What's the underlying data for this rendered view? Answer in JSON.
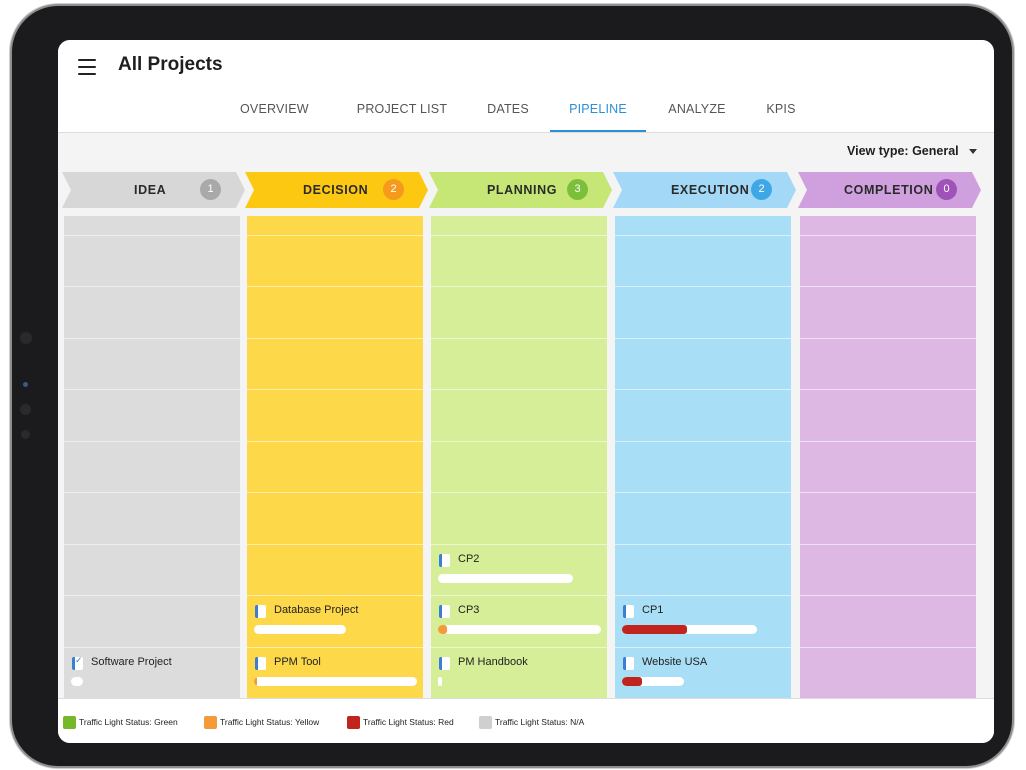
{
  "header": {
    "title": "All Projects",
    "menu_icon": "hamburger-menu-icon"
  },
  "tabs": [
    {
      "label": "OVERVIEW",
      "active": false
    },
    {
      "label": "PROJECT LIST",
      "active": false
    },
    {
      "label": "DATES",
      "active": false
    },
    {
      "label": "PIPELINE",
      "active": true
    },
    {
      "label": "ANALYZE",
      "active": false
    },
    {
      "label": "KPIS",
      "active": false
    }
  ],
  "view_type": {
    "label": "View type: General",
    "icon": "caret-down-icon"
  },
  "stages": [
    {
      "label": "IDEA",
      "count": "1",
      "color": "#d7d7d7",
      "column_color": "#dcdcdc",
      "badge_color": "#a9a9a9"
    },
    {
      "label": "DECISION",
      "count": "2",
      "color": "#fcc812",
      "column_color": "#fdd94a",
      "badge_color": "#f59a1d"
    },
    {
      "label": "PLANNING",
      "count": "3",
      "color": "#c6e775",
      "column_color": "#d6ee97",
      "badge_color": "#7cbf3a"
    },
    {
      "label": "EXECUTION",
      "count": "2",
      "color": "#a3d9f6",
      "column_color": "#a9dff6",
      "badge_color": "#3fa7e6"
    },
    {
      "label": "COMPLETION",
      "count": "0",
      "color": "#cfa0dd",
      "column_color": "#dcb8e3",
      "badge_color": "#9f53b9"
    }
  ],
  "cards": {
    "idea": [
      {
        "name": "Software Project",
        "checked": true,
        "progress": 0.0,
        "status": "na"
      }
    ],
    "decision": [
      {
        "name": "Database Project",
        "checked": false,
        "progress": 0.0,
        "status": "na"
      },
      {
        "name": "PPM Tool",
        "checked": false,
        "progress": 0.01,
        "status": "yellow"
      }
    ],
    "planning": [
      {
        "name": "CP2",
        "checked": false,
        "progress": 0.0,
        "status": "na"
      },
      {
        "name": "CP3",
        "checked": false,
        "progress": 0.07,
        "status": "yellow"
      },
      {
        "name": "PM Handbook",
        "checked": false,
        "progress": 0.0,
        "status": "na"
      }
    ],
    "execution": [
      {
        "name": "CP1",
        "checked": false,
        "progress": 0.48,
        "status": "red"
      },
      {
        "name": "Website USA",
        "checked": false,
        "progress": 0.32,
        "status": "red"
      }
    ],
    "completion": []
  },
  "status_colors": {
    "green": "#76b82a",
    "yellow": "#f59a3a",
    "red": "#c0241c",
    "na": "#cfcfcf"
  },
  "legend": [
    {
      "label": "Traffic Light Status: Green",
      "color": "#76b82a"
    },
    {
      "label": "Traffic Light Status: Yellow",
      "color": "#f59a3a"
    },
    {
      "label": "Traffic Light Status: Red",
      "color": "#c0241c"
    },
    {
      "label": "Traffic Light Status: N/A",
      "color": "#cfcfcf"
    }
  ]
}
